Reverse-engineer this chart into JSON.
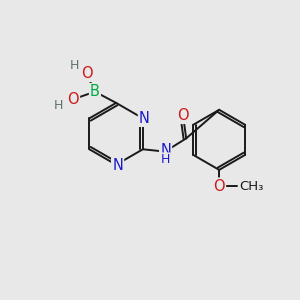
{
  "bg_color": "#e8e8e8",
  "bond_color": "#1a1a1a",
  "bond_width": 1.4,
  "atom_colors": {
    "N": "#1a1acc",
    "O": "#cc1a1a",
    "B": "#00aa44",
    "H": "#607070",
    "C": "#1a1a1a"
  },
  "font_size": 10.5,
  "font_size_small": 9.0
}
